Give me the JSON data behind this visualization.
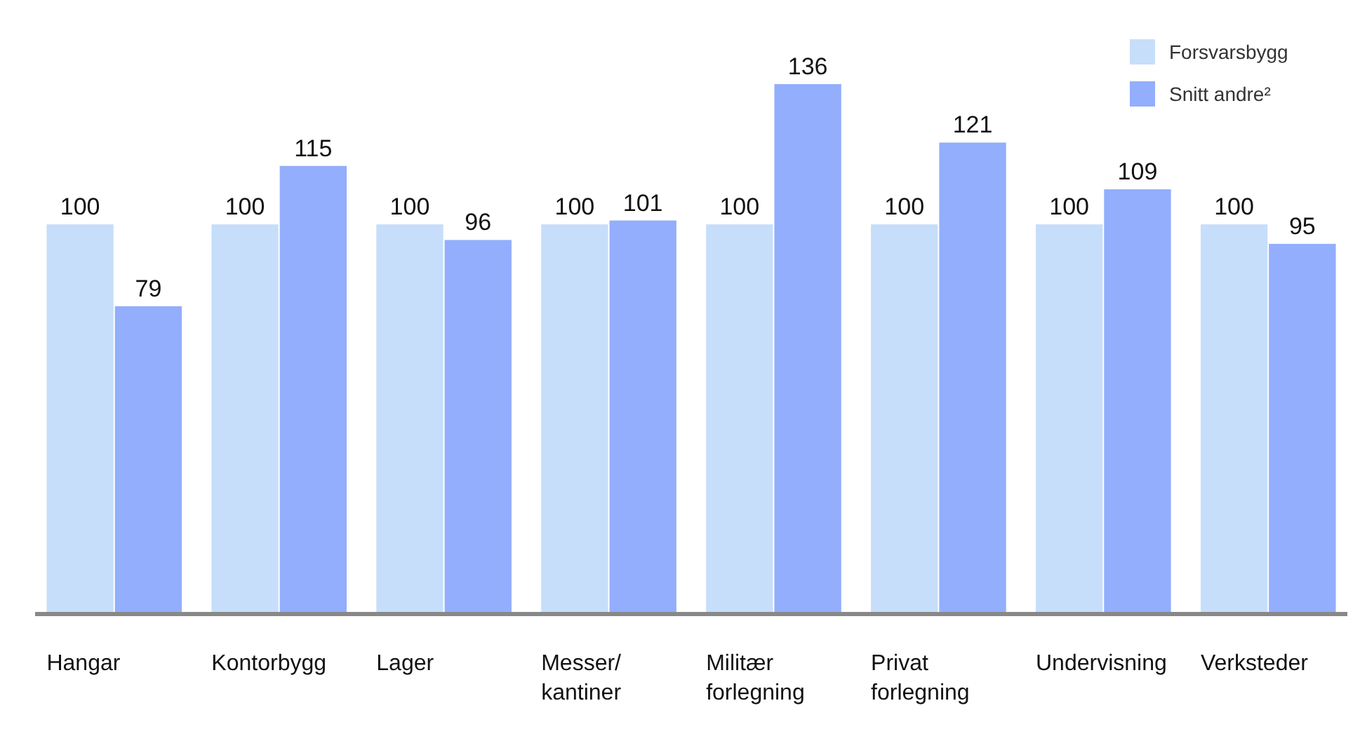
{
  "chart_data": {
    "type": "bar",
    "categories": [
      "Hangar",
      "Kontorbygg",
      "Lager",
      "Messer/\nkantiner",
      "Militær\nforlegning",
      "Privat\nforlegning",
      "Undervisning",
      "Verksteder"
    ],
    "series": [
      {
        "name": "Forsvarsbygg",
        "color": "#c6defa",
        "values": [
          100,
          100,
          100,
          100,
          100,
          100,
          100,
          100
        ]
      },
      {
        "name": "Snitt andre²",
        "color": "#92aefc",
        "values": [
          79,
          115,
          96,
          101,
          136,
          121,
          109,
          95
        ]
      }
    ],
    "data_labels": true,
    "legend": "top right"
  }
}
